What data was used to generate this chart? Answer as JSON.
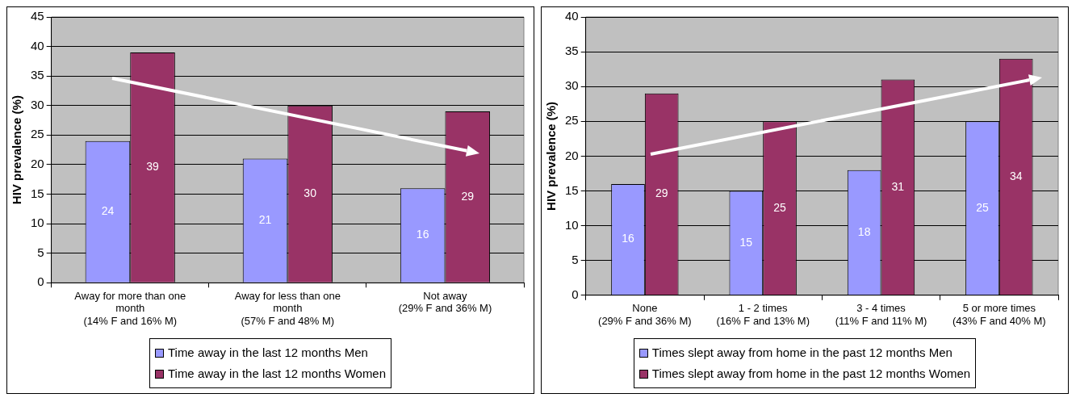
{
  "chart_data": [
    {
      "type": "bar",
      "ylabel": "HIV prevalence (%)",
      "categories": [
        "Away for more than one month\n(14% F and 16% M)",
        "Away for less than one month\n(57% F and 48% M)",
        "Not away\n(29% F and 36% M)"
      ],
      "series": [
        {
          "name": "Time away in the last 12 months Men",
          "color": "#9999ff",
          "values": [
            24,
            21,
            16
          ]
        },
        {
          "name": "Time away in the last 12 months Women",
          "color": "#993366",
          "values": [
            39,
            30,
            29
          ]
        }
      ],
      "ylim": [
        0,
        45
      ],
      "yticks": [
        0,
        5,
        10,
        15,
        20,
        25,
        30,
        35,
        40,
        45
      ],
      "grid": "y",
      "data_labels": true,
      "legend": "bottom"
    },
    {
      "type": "bar",
      "ylabel": "HIV prevalence (%)",
      "categories": [
        "None\n(29% F and 36% M)",
        "1 - 2 times\n(16% F and 13% M)",
        "3 - 4 times\n(11% F and 11% M)",
        "5 or more times\n(43% F and 40% M)"
      ],
      "series": [
        {
          "name": "Times slept away from home in the past 12 months Men",
          "color": "#9999ff",
          "values": [
            16,
            15,
            18,
            25
          ]
        },
        {
          "name": "Times slept away from home in the past 12 months Women",
          "color": "#993366",
          "values": [
            29,
            25,
            31,
            34
          ]
        }
      ],
      "ylim": [
        0,
        40
      ],
      "yticks": [
        0,
        5,
        10,
        15,
        20,
        25,
        30,
        35,
        40
      ],
      "grid": "y",
      "data_labels": true,
      "legend": "bottom"
    }
  ]
}
